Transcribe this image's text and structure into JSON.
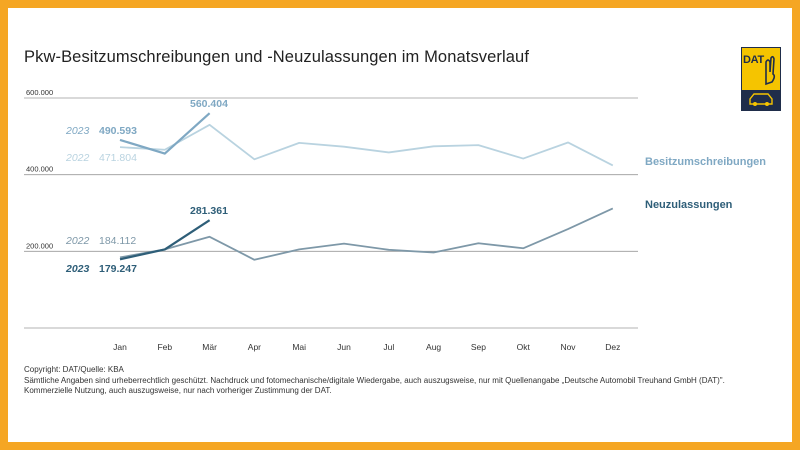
{
  "title": "Pkw-Besitzumschreibungen und -Neuzulassungen im Monatsverlauf",
  "logo": {
    "text": "DAT",
    "colors": {
      "yellow": "#F5C400",
      "navy": "#1f2d4a"
    }
  },
  "footer": {
    "copyright": "Copyright: DAT/Quelle: KBA",
    "line1": "Sämtliche Angaben sind urheberrechtlich geschützt. Nachdruck und fotomechanische/digitale Wiedergabe, auch auszugsweise, nur mit Quellenangabe „Deutsche Automobil Treuhand GmbH (DAT)\".",
    "line2": "Kommerzielle Nutzung, auch auszugsweise, nur nach vorheriger Zustimmung der DAT."
  },
  "colors": {
    "border": "#F5A623",
    "besitz_2023": "#7FA8C3",
    "besitz_2022": "#B9D3E0",
    "neu_2023": "#2E5E78",
    "neu_2022": "#7E98A8",
    "grid": "#9A9A9A"
  },
  "chart_data": {
    "type": "line",
    "title": "Pkw-Besitzumschreibungen und -Neuzulassungen im Monatsverlauf",
    "categories": [
      "Jan",
      "Feb",
      "Mär",
      "Apr",
      "Mai",
      "Jun",
      "Jul",
      "Aug",
      "Sep",
      "Okt",
      "Nov",
      "Dez"
    ],
    "y_ticks": [
      {
        "value": 200000,
        "label": "200.000"
      },
      {
        "value": 400000,
        "label": "400.000"
      },
      {
        "value": 600000,
        "label": "600.000"
      }
    ],
    "ylim": [
      0,
      600000
    ],
    "grid": true,
    "series": [
      {
        "name": "Besitzumschreibungen",
        "year": "2022",
        "color_key": "besitz_2022",
        "values": [
          471804,
          465000,
          530000,
          440000,
          483000,
          473000,
          458000,
          474000,
          477000,
          442000,
          484000,
          424000
        ]
      },
      {
        "name": "Besitzumschreibungen",
        "year": "2023",
        "color_key": "besitz_2023",
        "values": [
          490593,
          455000,
          560404,
          null,
          null,
          null,
          null,
          null,
          null,
          null,
          null,
          null
        ]
      },
      {
        "name": "Neuzulassungen",
        "year": "2022",
        "color_key": "neu_2022",
        "values": [
          184112,
          205000,
          238000,
          178000,
          205000,
          220000,
          204000,
          197000,
          221000,
          208000,
          258000,
          312000
        ]
      },
      {
        "name": "Neuzulassungen",
        "year": "2023",
        "color_key": "neu_2023",
        "values": [
          179247,
          205000,
          281361,
          null,
          null,
          null,
          null,
          null,
          null,
          null,
          null,
          null
        ]
      }
    ],
    "series_labels": [
      {
        "text": "Besitzumschreibungen",
        "color_key": "besitz_2023"
      },
      {
        "text": "Neuzulassungen",
        "color_key": "neu_2023"
      }
    ],
    "annotations": [
      {
        "text": "2023",
        "color_key": "besitz_2023",
        "italic": true,
        "bold": false
      },
      {
        "text": "490.593",
        "color_key": "besitz_2023",
        "italic": false,
        "bold": true
      },
      {
        "text": "2022",
        "color_key": "besitz_2022",
        "italic": true,
        "bold": false
      },
      {
        "text": "471.804",
        "color_key": "besitz_2022",
        "italic": false,
        "bold": false
      },
      {
        "text": "560.404",
        "color_key": "besitz_2023",
        "italic": false,
        "bold": true
      },
      {
        "text": "2022",
        "color_key": "neu_2022",
        "italic": true,
        "bold": false
      },
      {
        "text": "184.112",
        "color_key": "neu_2022",
        "italic": false,
        "bold": false
      },
      {
        "text": "2023",
        "color_key": "neu_2023",
        "italic": true,
        "bold": true
      },
      {
        "text": "179.247",
        "color_key": "neu_2023",
        "italic": false,
        "bold": true
      },
      {
        "text": "281.361",
        "color_key": "neu_2023",
        "italic": false,
        "bold": true
      }
    ]
  }
}
